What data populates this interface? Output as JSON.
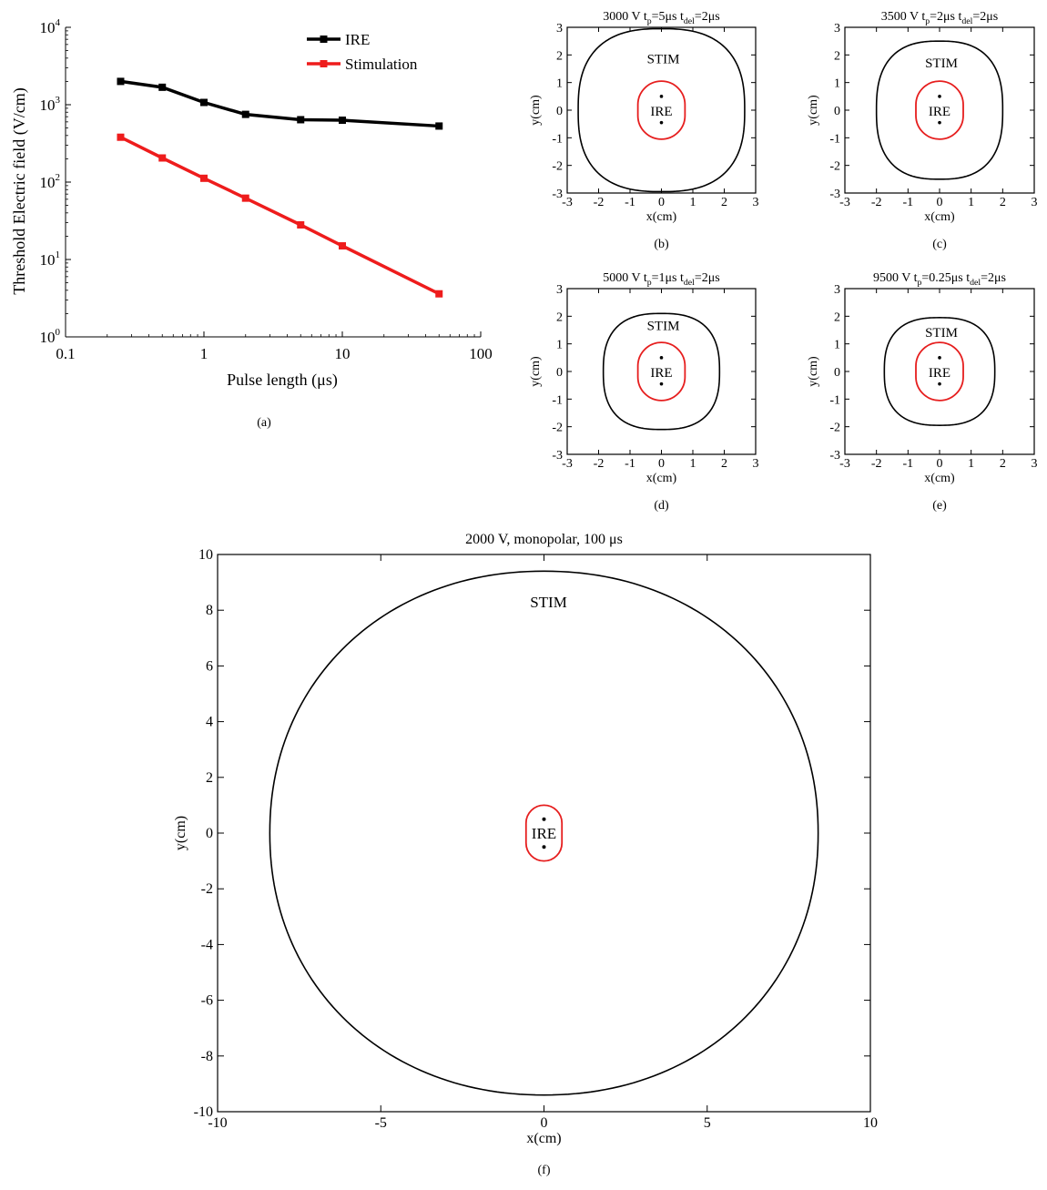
{
  "chart_data": [
    {
      "id": "a",
      "type": "line",
      "panel_label": "(a)",
      "xlabel": "Pulse length (μs)",
      "ylabel": "Threshold Electric field (V/cm)",
      "x_scale": "log",
      "y_scale": "log",
      "xlim": [
        0.1,
        100
      ],
      "ylim": [
        1,
        10000
      ],
      "x_ticks": [
        {
          "value": 0.1,
          "label": "0.1"
        },
        {
          "value": 1,
          "label": "1"
        },
        {
          "value": 10,
          "label": "10"
        },
        {
          "value": 100,
          "label": "100"
        }
      ],
      "y_ticks": [
        {
          "value": 1,
          "base": "10",
          "exp": "0"
        },
        {
          "value": 10,
          "base": "10",
          "exp": "1"
        },
        {
          "value": 100,
          "base": "10",
          "exp": "2"
        },
        {
          "value": 1000,
          "base": "10",
          "exp": "3"
        },
        {
          "value": 10000,
          "base": "10",
          "exp": "4"
        }
      ],
      "legend_position": "top-right",
      "series": [
        {
          "name": "IRE",
          "color": "#000000",
          "x": [
            0.25,
            0.5,
            1,
            2,
            5,
            10,
            50
          ],
          "y": [
            2000,
            1680,
            1070,
            750,
            640,
            630,
            530
          ]
        },
        {
          "name": "Stimulation",
          "color": "#ee1c1c",
          "x": [
            0.25,
            0.5,
            1,
            2,
            5,
            10,
            50
          ],
          "y": [
            380,
            205,
            112,
            62,
            28,
            15,
            3.6
          ]
        }
      ]
    },
    {
      "id": "b",
      "type": "contour",
      "panel_label": "(b)",
      "title": {
        "pre": "3000 V  t",
        "sub1": "p",
        "mid": "=5μs  t",
        "sub2": "del",
        "post": "=2μs"
      },
      "xlabel": "x(cm)",
      "ylabel": "y(cm)",
      "xlim": [
        -3,
        3
      ],
      "ylim": [
        -3,
        3
      ],
      "ticks": [
        "-3",
        "-2",
        "-1",
        "0",
        "1",
        "2",
        "3"
      ],
      "stim_label": "STIM",
      "ire_label": "IRE",
      "stim_contour": {
        "rx": 2.65,
        "ry": 2.95,
        "label_y": 1.9
      },
      "ire_contour": {
        "halfwidth": 0.75,
        "halfheight": 1.05
      },
      "electrodes_y": [
        0.5,
        -0.45
      ]
    },
    {
      "id": "c",
      "type": "contour",
      "panel_label": "(c)",
      "title": {
        "pre": "3500 V  t",
        "sub1": "p",
        "mid": "=2μs  t",
        "sub2": "del",
        "post": "=2μs"
      },
      "xlabel": "x(cm)",
      "ylabel": "y(cm)",
      "xlim": [
        -3,
        3
      ],
      "ylim": [
        -3,
        3
      ],
      "ticks": [
        "-3",
        "-2",
        "-1",
        "0",
        "1",
        "2",
        "3"
      ],
      "stim_label": "STIM",
      "ire_label": "IRE",
      "stim_contour": {
        "rx": 2.0,
        "ry": 2.5,
        "label_y": 1.75
      },
      "ire_contour": {
        "halfwidth": 0.75,
        "halfheight": 1.05
      },
      "electrodes_y": [
        0.5,
        -0.45
      ]
    },
    {
      "id": "d",
      "type": "contour",
      "panel_label": "(d)",
      "title": {
        "pre": "5000 V  t",
        "sub1": "p",
        "mid": "=1μs  t",
        "sub2": "del",
        "post": "=2μs"
      },
      "xlabel": "x(cm)",
      "ylabel": "y(cm)",
      "xlim": [
        -3,
        3
      ],
      "ylim": [
        -3,
        3
      ],
      "ticks": [
        "-3",
        "-2",
        "-1",
        "0",
        "1",
        "2",
        "3"
      ],
      "stim_label": "STIM",
      "ire_label": "IRE",
      "stim_contour": {
        "rx": 1.85,
        "ry": 2.1,
        "label_y": 1.7
      },
      "ire_contour": {
        "halfwidth": 0.75,
        "halfheight": 1.05
      },
      "electrodes_y": [
        0.5,
        -0.45
      ]
    },
    {
      "id": "e",
      "type": "contour",
      "panel_label": "(e)",
      "title": {
        "pre": "9500 V  t",
        "sub1": "p",
        "mid": "=0.25μs  t",
        "sub2": "del",
        "post": "=2μs"
      },
      "xlabel": "x(cm)",
      "ylabel": "y(cm)",
      "xlim": [
        -3,
        3
      ],
      "ylim": [
        -3,
        3
      ],
      "ticks": [
        "-3",
        "-2",
        "-1",
        "0",
        "1",
        "2",
        "3"
      ],
      "stim_label": "STIM",
      "ire_label": "IRE",
      "stim_contour": {
        "rx": 1.75,
        "ry": 1.95,
        "label_y": 1.45
      },
      "ire_contour": {
        "halfwidth": 0.75,
        "halfheight": 1.05
      },
      "electrodes_y": [
        0.5,
        -0.45
      ]
    },
    {
      "id": "f",
      "type": "contour",
      "panel_label": "(f)",
      "title": {
        "pre": "2000 V,  monopolar, 100 μs"
      },
      "xlabel": "x(cm)",
      "ylabel": "y(cm)",
      "xlim": [
        -10,
        10
      ],
      "ylim": [
        -10,
        10
      ],
      "x_ticks": [
        "-10",
        "-5",
        "0",
        "5",
        "10"
      ],
      "y_ticks": [
        "-10",
        "-8",
        "-6",
        "-4",
        "-2",
        "0",
        "2",
        "4",
        "6",
        "8",
        "10"
      ],
      "stim_label": "STIM",
      "ire_label": "IRE",
      "stim_contour": {
        "rx": 8.4,
        "ry": 9.4,
        "label_y": 8.3
      },
      "ire_contour": {
        "halfwidth": 0.55,
        "halfheight": 1.0
      },
      "electrodes_y": [
        0.5,
        -0.5
      ]
    }
  ]
}
